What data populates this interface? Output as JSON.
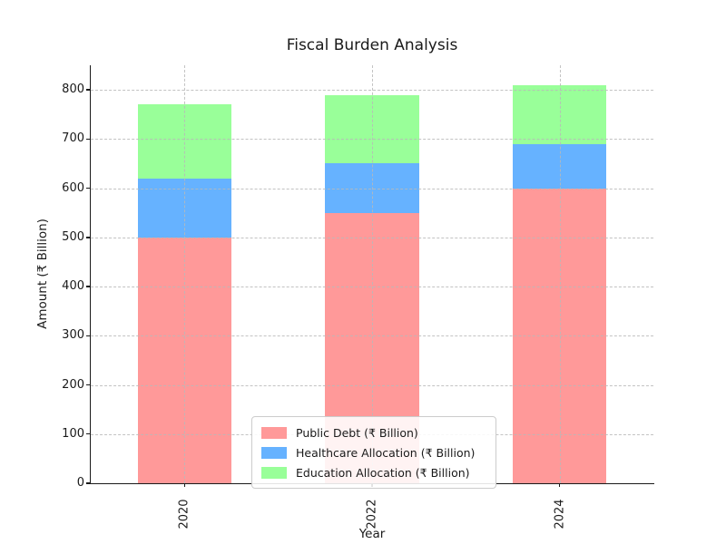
{
  "title": "Fiscal Burden Analysis",
  "chart_data": {
    "type": "bar",
    "stacked": true,
    "title": "Fiscal Burden Analysis",
    "xlabel": "Year",
    "ylabel": "Amount (₹ Billion)",
    "categories": [
      "2020",
      "2022",
      "2024"
    ],
    "series": [
      {
        "name": "Public Debt (₹ Billion)",
        "color": "#ff9999",
        "values": [
          500,
          550,
          600
        ]
      },
      {
        "name": "Healthcare Allocation (₹ Billion)",
        "color": "#66b2ff",
        "values": [
          120,
          100,
          90
        ]
      },
      {
        "name": "Education Allocation (₹ Billion)",
        "color": "#99ff99",
        "values": [
          150,
          140,
          120
        ]
      }
    ],
    "stack_totals": [
      770,
      790,
      810
    ],
    "ylim": [
      0,
      850
    ],
    "yticks": [
      0,
      100,
      200,
      300,
      400,
      500,
      600,
      700,
      800
    ],
    "x_tick_rotation": 90,
    "bar_width_fraction": 0.5,
    "grid": true,
    "grid_style": "dashed",
    "legend_position": "lower center"
  },
  "colors": {
    "background": "#ffffff",
    "spine": "#1a1a1a",
    "grid": "#b9b9b9",
    "text": "#1a1a1a",
    "legend_border": "#cccccc"
  }
}
